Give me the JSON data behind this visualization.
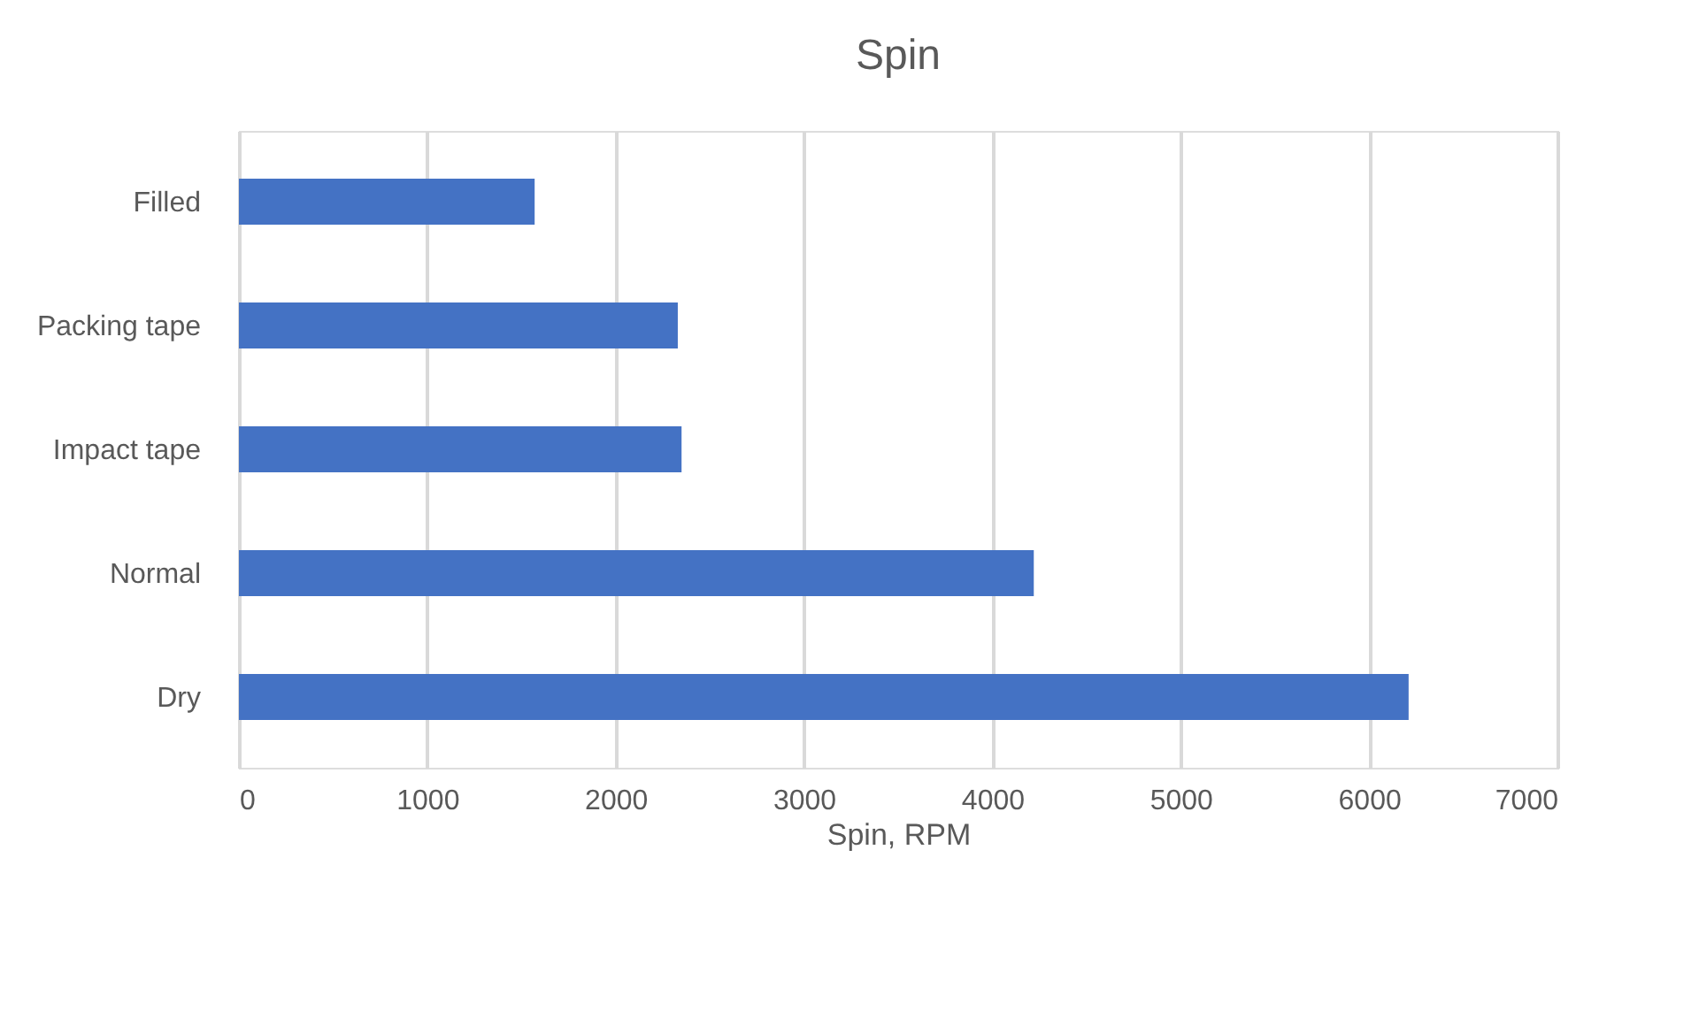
{
  "chart_data": {
    "type": "bar",
    "orientation": "horizontal",
    "title": "Spin",
    "xlabel": "Spin, RPM",
    "categories": [
      "Filled",
      "Packing tape",
      "Impact tape",
      "Normal",
      "Dry"
    ],
    "values": [
      1570,
      2330,
      2350,
      4220,
      6210
    ],
    "color": "#4472c4",
    "xlim": [
      0,
      7000
    ],
    "xticks": [
      0,
      1000,
      2000,
      3000,
      4000,
      5000,
      6000,
      7000
    ],
    "grid": "x"
  }
}
